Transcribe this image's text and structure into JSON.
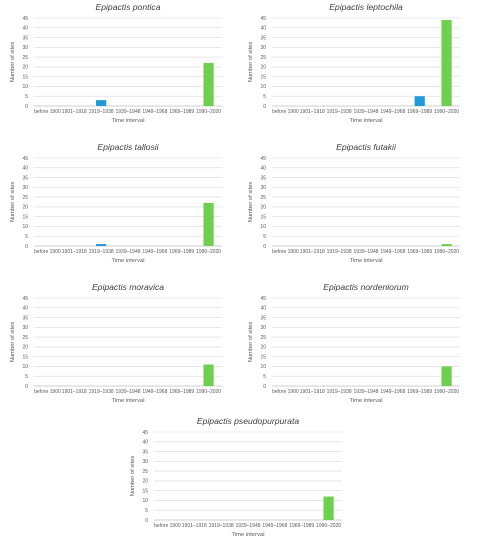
{
  "colors": {
    "early_bar": "#1f9bd7",
    "recent_bar": "#6fcf4f"
  },
  "chart_data": [
    {
      "type": "bar",
      "title": "Epipactis pontica",
      "xlabel": "Time interval",
      "ylabel": "Number of sites",
      "ylim": [
        0,
        45
      ],
      "yticks": [
        "0",
        "5",
        "10",
        "15",
        "20",
        "25",
        "30",
        "35",
        "40",
        "45"
      ],
      "grid": true,
      "categories": [
        "before 1900",
        "1901–1918",
        "1919–1938",
        "1939–1948",
        "1949–1968",
        "1969–1989",
        "1990–2020"
      ],
      "values": [
        0,
        0,
        3,
        0,
        0,
        0,
        22
      ]
    },
    {
      "type": "bar",
      "title": "Epipactis leptochila",
      "xlabel": "Time interval",
      "ylabel": "Number of sites",
      "ylim": [
        0,
        45
      ],
      "yticks": [
        "0",
        "5",
        "10",
        "15",
        "20",
        "25",
        "30",
        "35",
        "40",
        "45"
      ],
      "grid": true,
      "categories": [
        "before 1900",
        "1901–1918",
        "1919–1938",
        "1939–1948",
        "1949–1968",
        "1969–1989",
        "1990–2020"
      ],
      "values": [
        0,
        0,
        0,
        0,
        0,
        5,
        44
      ]
    },
    {
      "type": "bar",
      "title": "Epipactis tallosii",
      "xlabel": "Time interval",
      "ylabel": "Number of sites",
      "ylim": [
        0,
        45
      ],
      "yticks": [
        "0",
        "5",
        "10",
        "15",
        "20",
        "25",
        "30",
        "35",
        "40",
        "45"
      ],
      "grid": true,
      "categories": [
        "before 1900",
        "1901–1918",
        "1919–1938",
        "1939–1948",
        "1949–1968",
        "1969–1989",
        "1990–2020"
      ],
      "values": [
        0,
        0,
        1,
        0,
        0,
        0,
        22
      ]
    },
    {
      "type": "bar",
      "title": "Epipactis futakii",
      "xlabel": "Time interval",
      "ylabel": "Number of sites",
      "ylim": [
        0,
        45
      ],
      "yticks": [
        "0",
        "5",
        "10",
        "15",
        "20",
        "25",
        "30",
        "35",
        "40",
        "45"
      ],
      "grid": true,
      "categories": [
        "before 1900",
        "1901–1918",
        "1919–1938",
        "1939–1948",
        "1949–1968",
        "1969–1989",
        "1990–2020"
      ],
      "values": [
        0,
        0,
        0,
        0,
        0,
        0,
        1
      ]
    },
    {
      "type": "bar",
      "title": "Epipactis moravica",
      "xlabel": "Time interval",
      "ylabel": "Number of sites",
      "ylim": [
        0,
        45
      ],
      "yticks": [
        "0",
        "5",
        "10",
        "15",
        "20",
        "25",
        "30",
        "35",
        "40",
        "45"
      ],
      "grid": true,
      "categories": [
        "before 1900",
        "1901–1918",
        "1919–1938",
        "1939–1948",
        "1949–1968",
        "1969–1989",
        "1990–2020"
      ],
      "values": [
        0,
        0,
        0,
        0,
        0,
        0,
        11
      ]
    },
    {
      "type": "bar",
      "title": "Epipactis nordeniorum",
      "xlabel": "Time interval",
      "ylabel": "Number of sites",
      "ylim": [
        0,
        45
      ],
      "yticks": [
        "0",
        "5",
        "10",
        "15",
        "20",
        "25",
        "30",
        "35",
        "40",
        "45"
      ],
      "grid": true,
      "categories": [
        "before 1900",
        "1901–1918",
        "1919–1938",
        "1939–1948",
        "1949–1968",
        "1969–1989",
        "1990–2020"
      ],
      "values": [
        0,
        0,
        0,
        0,
        0,
        0,
        10
      ]
    },
    {
      "type": "bar",
      "title": "Epipactis pseudopurpurata",
      "xlabel": "Time interval",
      "ylabel": "Number of sites",
      "ylim": [
        0,
        45
      ],
      "yticks": [
        "0",
        "5",
        "10",
        "15",
        "20",
        "25",
        "30",
        "35",
        "40",
        "45"
      ],
      "grid": true,
      "categories": [
        "before 1900",
        "1901–1918",
        "1919–1938",
        "1939–1948",
        "1949–1968",
        "1969–1989",
        "1990–2020"
      ],
      "values": [
        0,
        0,
        0,
        0,
        0,
        0,
        12
      ]
    }
  ]
}
